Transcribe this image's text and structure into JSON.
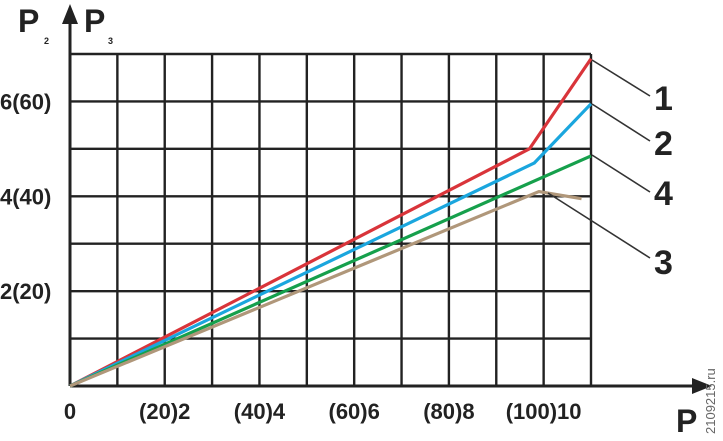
{
  "chart_data": {
    "type": "line",
    "y_axis_title": "P",
    "y_axis_sub_left": "2",
    "y_axis_title_2": "P",
    "y_axis_sub_right": "3",
    "x_axis_title": "P",
    "x_ticks": [
      {
        "value": 0,
        "label": "0"
      },
      {
        "value": 2,
        "label": "(20)2"
      },
      {
        "value": 4,
        "label": "(40)4"
      },
      {
        "value": 6,
        "label": "(60)6"
      },
      {
        "value": 8,
        "label": "(80)8"
      },
      {
        "value": 10,
        "label": "(100)10"
      }
    ],
    "y_ticks": [
      {
        "value": 2,
        "label": "2(20)"
      },
      {
        "value": 4,
        "label": "4(40)"
      },
      {
        "value": 6,
        "label": "6(60)"
      }
    ],
    "xlim": [
      0,
      11
    ],
    "ylim": [
      0,
      7
    ],
    "grid": true,
    "series": [
      {
        "name": "1",
        "color": "#d9343a",
        "x": [
          0,
          9.7,
          11
        ],
        "y": [
          0,
          5.0,
          6.9
        ]
      },
      {
        "name": "2",
        "color": "#1aa6de",
        "x": [
          0,
          9.8,
          11
        ],
        "y": [
          0,
          4.7,
          5.95
        ]
      },
      {
        "name": "4",
        "color": "#16a04c",
        "x": [
          0,
          11
        ],
        "y": [
          0,
          4.85
        ]
      },
      {
        "name": "3",
        "color": "#b0977a",
        "x": [
          0,
          9.9,
          10.8
        ],
        "y": [
          0,
          4.1,
          3.95
        ]
      }
    ],
    "watermark": "2109215.ru"
  }
}
